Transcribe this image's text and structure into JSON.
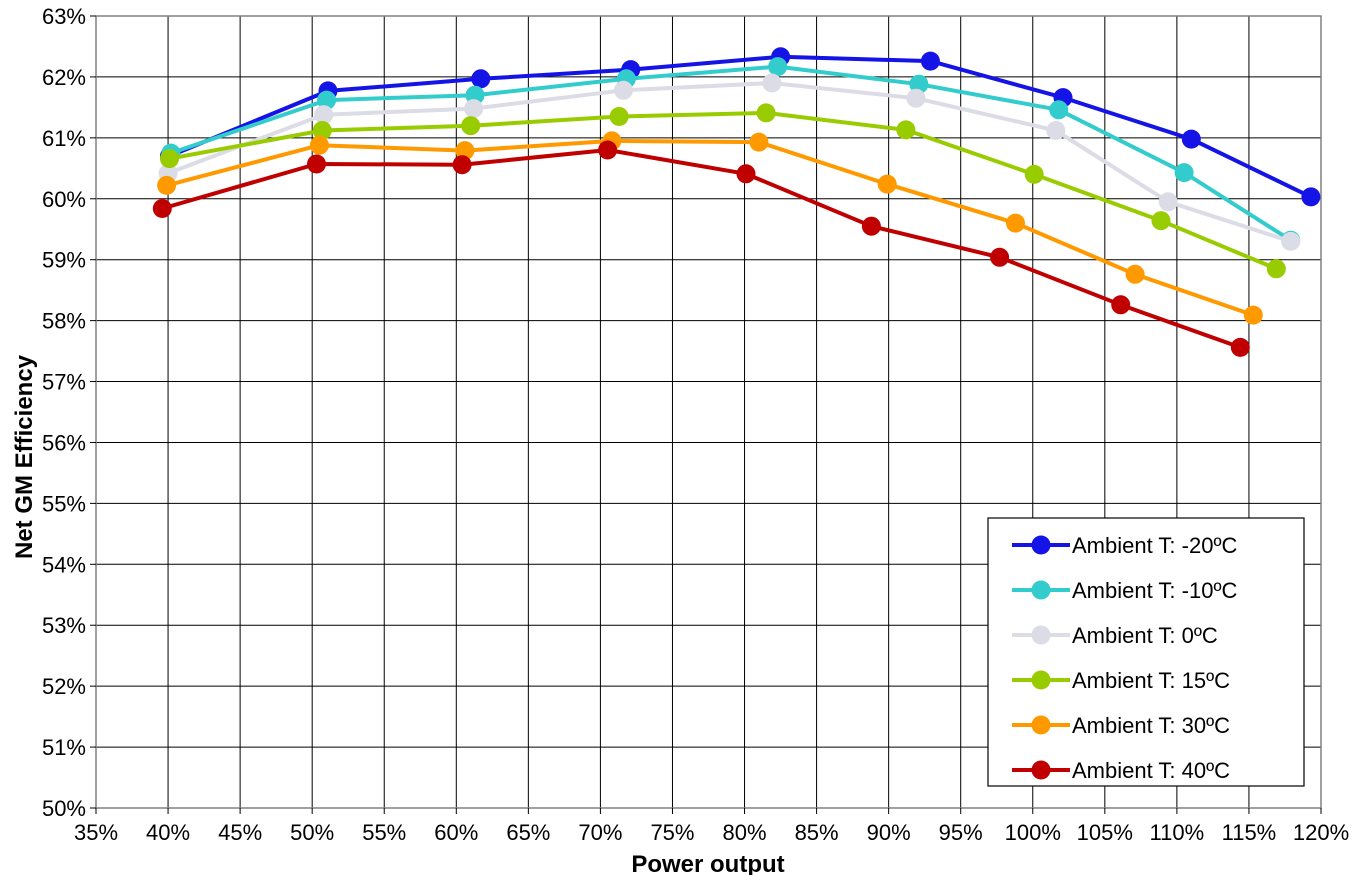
{
  "chart_data": {
    "type": "line",
    "xlabel": "Power output",
    "ylabel": "Net GM Efficiency",
    "xlim": [
      35,
      120
    ],
    "ylim": [
      50,
      63
    ],
    "x_ticks": [
      "35%",
      "40%",
      "45%",
      "50%",
      "55%",
      "60%",
      "65%",
      "70%",
      "75%",
      "80%",
      "85%",
      "90%",
      "95%",
      "100%",
      "105%",
      "110%",
      "115%",
      "120%"
    ],
    "y_ticks": [
      "50%",
      "51%",
      "52%",
      "53%",
      "54%",
      "55%",
      "56%",
      "57%",
      "58%",
      "59%",
      "60%",
      "61%",
      "62%",
      "63%"
    ],
    "grid": true,
    "legend_position": "bottom-right",
    "series": [
      {
        "name": "Ambient T: -20ºC",
        "color": "#1414e6",
        "points": [
          [
            40.1,
            60.7
          ],
          [
            51.1,
            61.77
          ],
          [
            61.7,
            61.97
          ],
          [
            72.1,
            62.12
          ],
          [
            82.5,
            62.33
          ],
          [
            92.9,
            62.26
          ],
          [
            102.1,
            61.66
          ],
          [
            111.0,
            60.98
          ],
          [
            119.3,
            60.03
          ]
        ]
      },
      {
        "name": "Ambient T: -10ºC",
        "color": "#33cccc",
        "points": [
          [
            40.2,
            60.75
          ],
          [
            51.0,
            61.62
          ],
          [
            61.3,
            61.7
          ],
          [
            71.8,
            61.97
          ],
          [
            82.3,
            62.17
          ],
          [
            92.1,
            61.88
          ],
          [
            101.8,
            61.46
          ],
          [
            110.5,
            60.43
          ],
          [
            117.9,
            59.32
          ]
        ]
      },
      {
        "name": "Ambient T: 0ºC",
        "color": "#dcdce6",
        "points": [
          [
            40.0,
            60.42
          ],
          [
            50.8,
            61.38
          ],
          [
            61.2,
            61.48
          ],
          [
            71.6,
            61.78
          ],
          [
            81.9,
            61.9
          ],
          [
            91.9,
            61.65
          ],
          [
            101.6,
            61.12
          ],
          [
            109.4,
            59.95
          ],
          [
            117.9,
            59.3
          ]
        ]
      },
      {
        "name": "Ambient T: 15ºC",
        "color": "#99cc00",
        "points": [
          [
            40.1,
            60.66
          ],
          [
            50.7,
            61.12
          ],
          [
            61.0,
            61.2
          ],
          [
            71.3,
            61.35
          ],
          [
            81.5,
            61.41
          ],
          [
            91.2,
            61.13
          ],
          [
            100.1,
            60.4
          ],
          [
            108.9,
            59.64
          ],
          [
            116.9,
            58.85
          ]
        ]
      },
      {
        "name": "Ambient T: 30ºC",
        "color": "#ff9900",
        "points": [
          [
            39.9,
            60.22
          ],
          [
            50.5,
            60.88
          ],
          [
            60.6,
            60.79
          ],
          [
            70.8,
            60.95
          ],
          [
            81.0,
            60.93
          ],
          [
            89.9,
            60.24
          ],
          [
            98.8,
            59.6
          ],
          [
            107.1,
            58.76
          ],
          [
            115.3,
            58.09
          ]
        ]
      },
      {
        "name": "Ambient T: 40ºC",
        "color": "#c00000",
        "points": [
          [
            39.6,
            59.84
          ],
          [
            50.3,
            60.57
          ],
          [
            60.4,
            60.56
          ],
          [
            70.5,
            60.8
          ],
          [
            80.1,
            60.41
          ],
          [
            88.8,
            59.55
          ],
          [
            97.7,
            59.04
          ],
          [
            106.1,
            58.26
          ],
          [
            114.4,
            57.56
          ]
        ]
      }
    ]
  }
}
